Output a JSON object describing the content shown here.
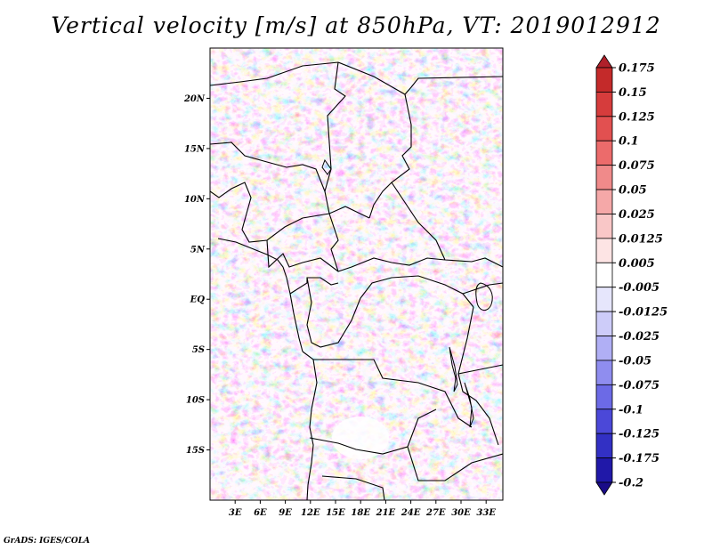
{
  "title": "Vertical velocity [m/s] at 850hPa, VT: 2019012912",
  "credit": "GrADS: IGES/COLA",
  "map": {
    "lon_range": [
      0,
      35
    ],
    "lat_range": [
      -20,
      25
    ],
    "lat_ticks": [
      {
        "value": 20,
        "label": "20N"
      },
      {
        "value": 15,
        "label": "15N"
      },
      {
        "value": 10,
        "label": "10N"
      },
      {
        "value": 5,
        "label": "5N"
      },
      {
        "value": 0,
        "label": "EQ"
      },
      {
        "value": -5,
        "label": "5S"
      },
      {
        "value": -10,
        "label": "10S"
      },
      {
        "value": -15,
        "label": "15S"
      }
    ],
    "lon_ticks": [
      {
        "value": 3,
        "label": "3E"
      },
      {
        "value": 6,
        "label": "6E"
      },
      {
        "value": 9,
        "label": "9E"
      },
      {
        "value": 12,
        "label": "12E"
      },
      {
        "value": 15,
        "label": "15E"
      },
      {
        "value": 18,
        "label": "18E"
      },
      {
        "value": 21,
        "label": "21E"
      },
      {
        "value": 24,
        "label": "24E"
      },
      {
        "value": 27,
        "label": "27E"
      },
      {
        "value": 30,
        "label": "30E"
      },
      {
        "value": 33,
        "label": "33E"
      }
    ]
  },
  "colorbar": {
    "labels": [
      "0.175",
      "0.15",
      "0.125",
      "0.1",
      "0.075",
      "0.05",
      "0.025",
      "0.0125",
      "0.005",
      "-0.005",
      "-0.0125",
      "-0.025",
      "-0.05",
      "-0.075",
      "-0.1",
      "-0.125",
      "-0.175",
      "-0.2"
    ],
    "colors": [
      "#b0202a",
      "#c42a2a",
      "#d63c3c",
      "#e25050",
      "#ec6b6b",
      "#f08a8a",
      "#f5a8a8",
      "#f9c7c7",
      "#fde4e4",
      "#ffffff",
      "#e6e6fc",
      "#cdccf9",
      "#b0aff5",
      "#8f8def",
      "#6c6ae6",
      "#4b48d8",
      "#3230c4",
      "#2018a8",
      "#1a0c88"
    ]
  }
}
